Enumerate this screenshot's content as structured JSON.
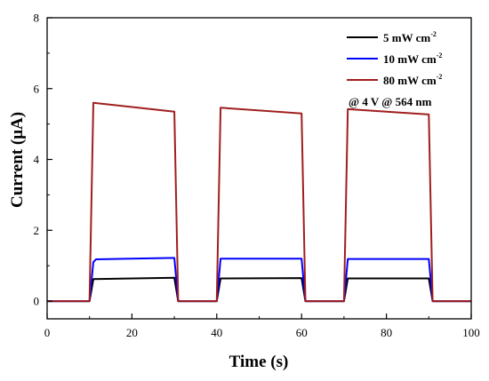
{
  "chart_data": {
    "type": "line",
    "xlabel": "Time (s)",
    "ylabel": "Current (μA)",
    "xlim": [
      0,
      100
    ],
    "ylim": [
      -0.5,
      8
    ],
    "x_ticks": [
      "0",
      "20",
      "40",
      "60",
      "80",
      "100"
    ],
    "y_ticks": [
      "0",
      "2",
      "4",
      "6",
      "8"
    ],
    "grid": false,
    "legend_position": "top-right",
    "annotation": "@ 4 V @ 564 nm",
    "series": [
      {
        "name": "5 mW cm",
        "name_sup": "-2",
        "color": "#000000",
        "x": [
          0,
          10,
          10.9,
          30,
          30.9,
          40,
          40.9,
          60,
          60.9,
          70,
          70.9,
          90,
          90.9,
          100
        ],
        "y": [
          0,
          0,
          0.62,
          0.66,
          0,
          0,
          0.64,
          0.65,
          0,
          0,
          0.64,
          0.64,
          0,
          0
        ]
      },
      {
        "name": "10 mW cm",
        "name_sup": "-2",
        "color": "#0000ff",
        "x": [
          0,
          10,
          10.9,
          11.5,
          30,
          30.9,
          40,
          40.9,
          60,
          60.9,
          70,
          70.9,
          90,
          90.9,
          100
        ],
        "y": [
          0,
          0,
          1.1,
          1.18,
          1.22,
          0,
          0,
          1.2,
          1.2,
          0,
          0,
          1.19,
          1.19,
          0,
          0
        ]
      },
      {
        "name": "80 mW cm",
        "name_sup": "-2",
        "color": "#a01e1e",
        "x": [
          0,
          10,
          10.9,
          30,
          30.9,
          40,
          40.9,
          60,
          60.9,
          70,
          70.9,
          90,
          90.9,
          100
        ],
        "y": [
          0,
          0,
          5.6,
          5.35,
          0,
          0,
          5.46,
          5.3,
          0,
          0,
          5.42,
          5.27,
          0,
          0
        ]
      }
    ]
  }
}
